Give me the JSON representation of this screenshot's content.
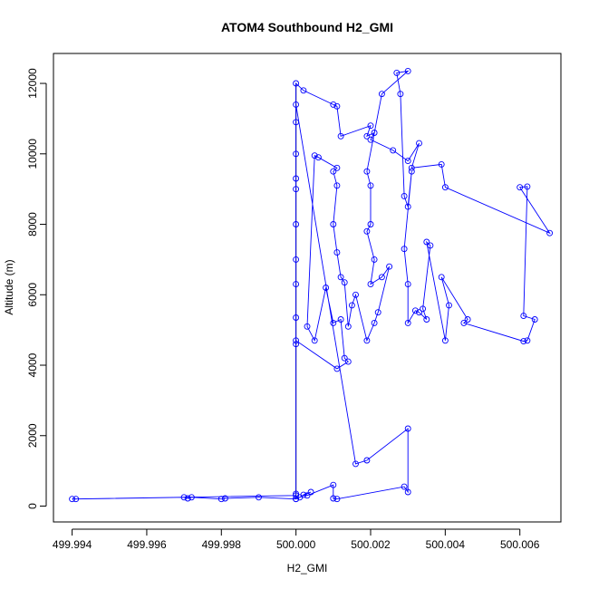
{
  "chart_data": {
    "type": "scatter",
    "title": "ATOM4 Southbound H2_GMI",
    "xlabel": "H2_GMI",
    "ylabel": "Altitude (m)",
    "xlim": [
      499.9935,
      500.0071
    ],
    "ylim": [
      -450,
      12850
    ],
    "x_ticks": [
      499.994,
      499.996,
      499.998,
      500.0,
      500.002,
      500.004,
      500.006
    ],
    "x_tick_labels": [
      "499.994",
      "499.996",
      "499.998",
      "500.000",
      "500.002",
      "500.004",
      "500.006"
    ],
    "y_ticks": [
      0,
      2000,
      4000,
      6000,
      8000,
      10000,
      12000
    ],
    "y_tick_labels": [
      "0",
      "2000",
      "4000",
      "6000",
      "8000",
      "10000",
      "12000"
    ],
    "grid": false,
    "series_color": "#0000ff",
    "vertical_profile_color": "#000000",
    "vertical_profile_x": 500.0,
    "vertical_profile_y": [
      200,
      12000
    ],
    "series": [
      {
        "points": [
          [
            500.0,
            200
          ],
          [
            500.0,
            12000
          ],
          [
            500.0002,
            11800
          ],
          [
            500.001,
            11400
          ],
          [
            500.0011,
            11350
          ],
          [
            500.0012,
            10500
          ],
          [
            500.002,
            10800
          ],
          [
            500.0019,
            10500
          ],
          [
            500.0021,
            10600
          ],
          [
            500.002,
            10400
          ],
          [
            500.0026,
            10100
          ],
          [
            500.003,
            9800
          ],
          [
            500.0033,
            10300
          ],
          [
            500.0031,
            9600
          ],
          [
            500.0039,
            9700
          ],
          [
            500.004,
            9050
          ],
          [
            500.0068,
            7750
          ],
          [
            500.006,
            9050
          ],
          [
            500.0062,
            9070
          ],
          [
            500.0061,
            5400
          ],
          [
            500.0064,
            5300
          ],
          [
            500.0062,
            4700
          ],
          [
            500.0061,
            4680
          ],
          [
            500.0045,
            5200
          ],
          [
            500.0046,
            5300
          ],
          [
            500.0039,
            6500
          ],
          [
            500.0041,
            5700
          ],
          [
            500.004,
            4700
          ],
          [
            500.0035,
            7500
          ],
          [
            500.0036,
            7400
          ],
          [
            500.0034,
            5600
          ],
          [
            500.0035,
            5300
          ],
          [
            500.0033,
            5500
          ],
          [
            500.0032,
            5550
          ],
          [
            500.003,
            5200
          ],
          [
            500.003,
            6300
          ],
          [
            500.0029,
            7300
          ],
          [
            500.0031,
            9500
          ],
          [
            500.003,
            8500
          ],
          [
            500.0029,
            8800
          ],
          [
            500.0028,
            11700
          ],
          [
            500.0027,
            12300
          ],
          [
            500.003,
            12350
          ],
          [
            500.0023,
            11700
          ],
          [
            500.0019,
            9500
          ],
          [
            500.002,
            9100
          ],
          [
            500.002,
            8000
          ],
          [
            500.0019,
            7800
          ],
          [
            500.0021,
            7000
          ],
          [
            500.002,
            6300
          ],
          [
            500.0023,
            6500
          ],
          [
            500.0025,
            6800
          ],
          [
            500.0022,
            5500
          ],
          [
            500.0021,
            5200
          ],
          [
            500.0019,
            4700
          ],
          [
            500.0016,
            6000
          ],
          [
            500.0015,
            5700
          ],
          [
            500.0014,
            5100
          ],
          [
            500.0013,
            6350
          ],
          [
            500.0012,
            6500
          ],
          [
            500.0011,
            7200
          ],
          [
            500.001,
            8000
          ],
          [
            500.0011,
            9100
          ],
          [
            500.001,
            9500
          ],
          [
            500.0011,
            9600
          ],
          [
            500.0006,
            9900
          ],
          [
            500.0005,
            9950
          ],
          [
            500.0003,
            5100
          ],
          [
            500.0005,
            4700
          ],
          [
            500.0008,
            6200
          ],
          [
            500.001,
            5200
          ],
          [
            500.0012,
            5300
          ],
          [
            500.0013,
            4200
          ],
          [
            500.0014,
            4100
          ],
          [
            500.0011,
            3900
          ],
          [
            500.0,
            4700
          ],
          [
            500.0,
            4600
          ],
          [
            500.0,
            5350
          ],
          [
            500.0,
            6300
          ],
          [
            500.0,
            7000
          ],
          [
            500.0,
            8000
          ],
          [
            500.0,
            9000
          ],
          [
            500.0,
            9300
          ],
          [
            500.0,
            10000
          ],
          [
            500.0,
            10900
          ],
          [
            500.0,
            11400
          ],
          [
            500.0016,
            1200
          ],
          [
            500.0019,
            1300
          ],
          [
            500.003,
            2200
          ],
          [
            500.003,
            400
          ],
          [
            500.0029,
            550
          ],
          [
            500.0011,
            200
          ],
          [
            500.001,
            220
          ],
          [
            500.001,
            600
          ],
          [
            500.0003,
            300
          ],
          [
            500.0002,
            320
          ],
          [
            500.0004,
            400
          ],
          [
            500.0001,
            250
          ],
          [
            500.0,
            200
          ],
          [
            499.999,
            250
          ],
          [
            499.9981,
            220
          ],
          [
            499.998,
            200
          ],
          [
            499.9972,
            250
          ],
          [
            499.9971,
            220
          ],
          [
            499.997,
            250
          ],
          [
            499.9941,
            200
          ],
          [
            499.994,
            200
          ],
          [
            500.0,
            300
          ],
          [
            500.0,
            350
          ]
        ]
      }
    ]
  }
}
